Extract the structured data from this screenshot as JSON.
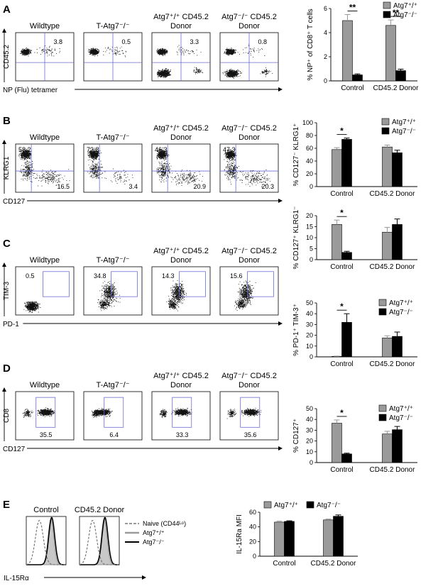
{
  "colors": {
    "wt": "#9a9a9a",
    "ko": "#000000",
    "gate": "#6b6bd6",
    "dot": "#111111",
    "naive": "#777777",
    "fill": "#c8c8c8"
  },
  "panels": [
    {
      "letter": "A",
      "titles": [
        [
          "Wildtype"
        ],
        [
          "T-Atg7⁻/⁻"
        ],
        [
          "Atg7⁺/⁺ CD45.2",
          "Donor"
        ],
        [
          "Atg7⁻/⁻ CD45.2",
          "Donor"
        ]
      ],
      "ylabel": "CD45.2",
      "xlabel": "NP (Flu) tetramer",
      "gate_type": "quad",
      "numbers": [
        [
          "3.8"
        ],
        [
          "0.5"
        ],
        [
          "3.3"
        ],
        [
          "0.8"
        ]
      ]
    },
    {
      "letter": "B",
      "titles": [
        [
          "Wildtype"
        ],
        [
          "T-Atg7⁻/⁻"
        ],
        [
          "Atg7⁺/⁺ CD45.2",
          "Donor"
        ],
        [
          "Atg7⁻/⁻ CD45.2",
          "Donor"
        ]
      ],
      "ylabel": "KLRG1",
      "xlabel": "CD127",
      "gate_type": "quad",
      "numbers": [
        [
          "58.2",
          "16.5"
        ],
        [
          "72.8",
          "3.4"
        ],
        [
          "46.3",
          "20.9"
        ],
        [
          "47.3",
          "20.3"
        ]
      ]
    },
    {
      "letter": "C",
      "titles": [
        [
          "Wildtype"
        ],
        [
          "T-Atg7⁻/⁻"
        ],
        [
          "Atg7⁺/⁺ CD45.2",
          "Donor"
        ],
        [
          "Atg7⁻/⁻ CD45.2",
          "Donor"
        ]
      ],
      "ylabel": "TIM-3",
      "xlabel": "PD-1",
      "gate_type": "box",
      "numbers": [
        [
          "0.5"
        ],
        [
          "34.8"
        ],
        [
          "14.3"
        ],
        [
          "15.6"
        ]
      ]
    },
    {
      "letter": "D",
      "titles": [
        [
          "Wildtype"
        ],
        [
          "T-Atg7⁻/⁻"
        ],
        [
          "Atg7⁺/⁺ CD45.2",
          "Donor"
        ],
        [
          "Atg7⁻/⁻ CD45.2",
          "Donor"
        ]
      ],
      "ylabel": "CD8",
      "xlabel": "CD127",
      "gate_type": "box",
      "numbers": [
        [
          "35.5"
        ],
        [
          "6.4"
        ],
        [
          "33.3"
        ],
        [
          "35.6"
        ]
      ]
    }
  ],
  "panel_e": {
    "letter": "E",
    "titles": [
      "Control",
      "CD45.2 Donor"
    ],
    "xlabel": "IL-15Rα",
    "legend": [
      "Naive (CD44ᴸᵒ)",
      "Atg7⁺/⁺",
      "Atg7⁻/⁻"
    ]
  },
  "chart_data": [
    {
      "type": "bar",
      "panel": "A",
      "categories": [
        "Control",
        "CD45.2 Donor"
      ],
      "series": [
        {
          "name": "Atg7⁺/⁺",
          "values": [
            5.0,
            4.6
          ],
          "errors": [
            0.5,
            0.45
          ]
        },
        {
          "name": "Atg7⁻/⁻",
          "values": [
            0.5,
            0.85
          ],
          "errors": [
            0.08,
            0.12
          ]
        }
      ],
      "ylabel": "% NP⁺ of CD8⁺ T cells",
      "ylim": [
        0,
        6
      ],
      "yticks": [
        0,
        2,
        4,
        6
      ],
      "significance": [
        "**",
        "**"
      ],
      "legend": "top-right"
    },
    {
      "type": "bar",
      "panel": "B",
      "categories": [
        "Control",
        "CD45.2 Donor"
      ],
      "series": [
        {
          "name": "Atg7⁺/⁺",
          "values": [
            58,
            62
          ],
          "errors": [
            3,
            3
          ]
        },
        {
          "name": "Atg7⁻/⁻",
          "values": [
            74,
            53
          ],
          "errors": [
            2,
            4
          ]
        }
      ],
      "ylabel": "% CD127⁻ KLRG1⁺",
      "ylim": [
        0,
        100
      ],
      "yticks": [
        0,
        20,
        40,
        60,
        80,
        100
      ],
      "significance": [
        "*",
        ""
      ],
      "legend": "top-right"
    },
    {
      "type": "bar",
      "panel": "B",
      "categories": [
        "Control",
        "CD45.2 Donor"
      ],
      "series": [
        {
          "name": "Atg7⁺/⁺",
          "values": [
            16,
            12.5
          ],
          "errors": [
            2,
            2.2
          ]
        },
        {
          "name": "Atg7⁻/⁻",
          "values": [
            3.3,
            16
          ],
          "errors": [
            0.5,
            2.5
          ]
        }
      ],
      "ylabel": "% CD127⁺ KLRG1⁻",
      "ylim": [
        0,
        20
      ],
      "yticks": [
        0,
        5,
        10,
        15,
        20
      ],
      "significance": [
        "*",
        ""
      ],
      "legend": ""
    },
    {
      "type": "bar",
      "panel": "C",
      "categories": [
        "Control",
        "CD45.2 Donor"
      ],
      "series": [
        {
          "name": "Atg7⁺/⁺",
          "values": [
            0.5,
            17.5
          ],
          "errors": [
            0.2,
            2
          ]
        },
        {
          "name": "Atg7⁻/⁻",
          "values": [
            32,
            19
          ],
          "errors": [
            8,
            4
          ]
        }
      ],
      "ylabel": "% PD-1⁺ TIM-3⁺",
      "ylim": [
        0,
        50
      ],
      "yticks": [
        0,
        10,
        20,
        30,
        40,
        50
      ],
      "significance": [
        "*",
        ""
      ],
      "legend": "top-right"
    },
    {
      "type": "bar",
      "panel": "D",
      "categories": [
        "Control",
        "CD45.2 Donor"
      ],
      "series": [
        {
          "name": "Atg7⁺/⁺",
          "values": [
            36.5,
            26.5
          ],
          "errors": [
            3,
            2.5
          ]
        },
        {
          "name": "Atg7⁻/⁻",
          "values": [
            8,
            30.5
          ],
          "errors": [
            0.7,
            3
          ]
        }
      ],
      "ylabel": "% CD127⁺",
      "ylim": [
        0,
        50
      ],
      "yticks": [
        0,
        10,
        20,
        30,
        40,
        50
      ],
      "significance": [
        "*",
        ""
      ],
      "legend": "top-right"
    },
    {
      "type": "bar",
      "panel": "E",
      "categories": [
        "Control",
        "CD45.2 Donor"
      ],
      "series": [
        {
          "name": "Atg7⁺/⁺",
          "values": [
            46.5,
            49.5
          ],
          "errors": [
            1.3,
            1.2
          ]
        },
        {
          "name": "Atg7⁻/⁻",
          "values": [
            47.5,
            54.5
          ],
          "errors": [
            0.8,
            1.8
          ]
        }
      ],
      "ylabel": "IL-15Ra MFI",
      "ylim": [
        0,
        60
      ],
      "yticks": [
        0,
        20,
        40,
        60
      ],
      "significance": [
        "",
        ""
      ],
      "legend": "top"
    }
  ]
}
